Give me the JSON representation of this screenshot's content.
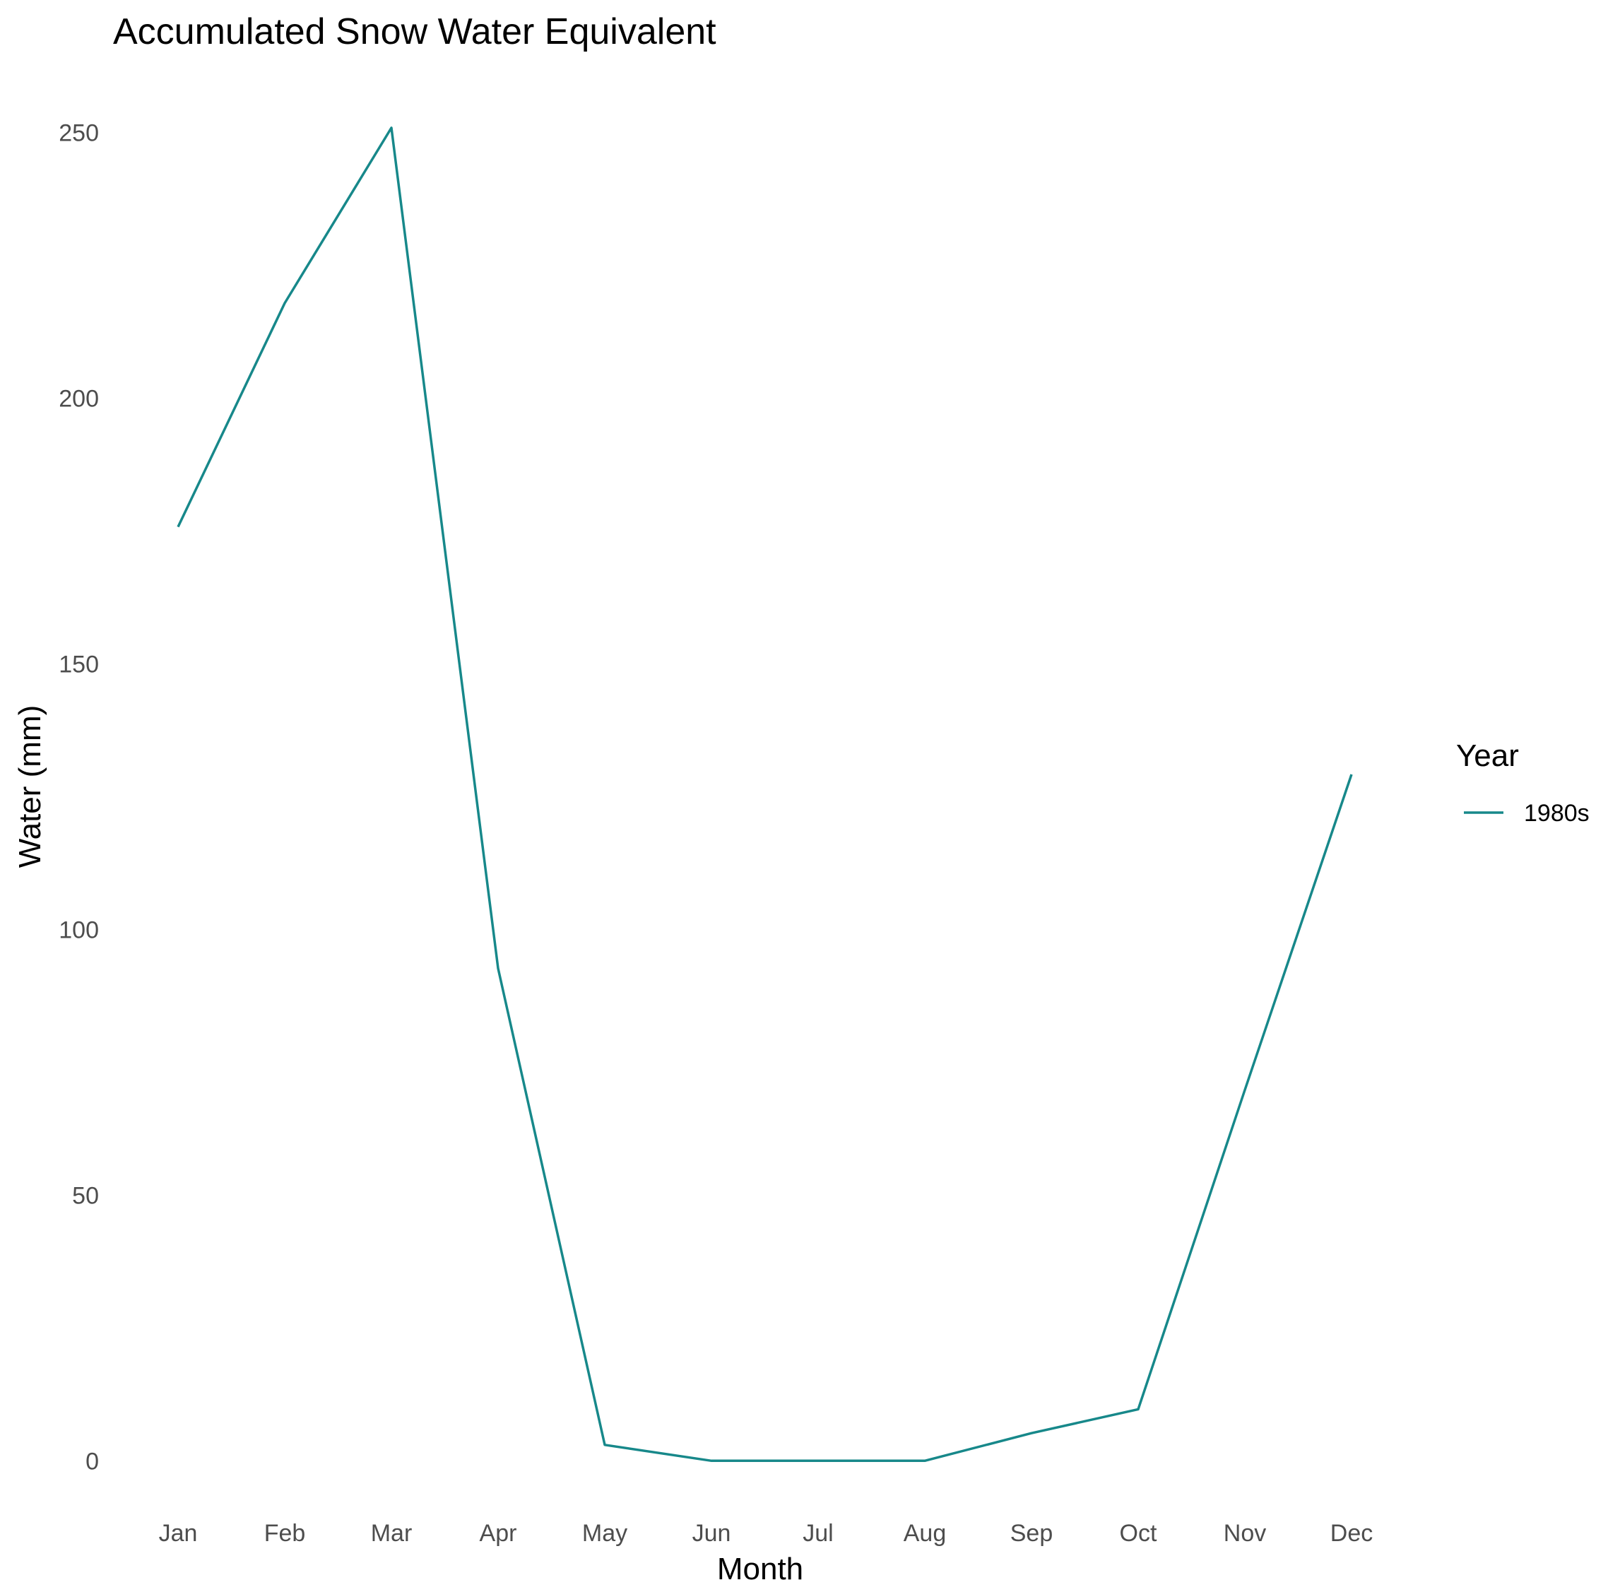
{
  "chart_data": {
    "type": "line",
    "title": "Accumulated Snow Water Equivalent",
    "xlabel": "Month",
    "ylabel": "Water (mm)",
    "categories": [
      "Jan",
      "Feb",
      "Mar",
      "Apr",
      "May",
      "Jun",
      "Jul",
      "Aug",
      "Sep",
      "Oct",
      "Nov",
      "Dec"
    ],
    "ylim": [
      -9,
      259
    ],
    "yticks": [
      0,
      50,
      100,
      150,
      200,
      250
    ],
    "ytick_labels": [
      "0",
      "50",
      "100",
      "150",
      "200",
      "250"
    ],
    "grid": false,
    "legend": {
      "title": "Year",
      "position": "right"
    },
    "series": [
      {
        "name": "1980s",
        "color": "#17888A",
        "values": [
          175.8,
          217.9,
          250.9,
          92.7,
          3.0,
          0.0,
          0.0,
          0.0,
          5.2,
          9.7,
          69.8,
          129.2
        ]
      }
    ]
  }
}
